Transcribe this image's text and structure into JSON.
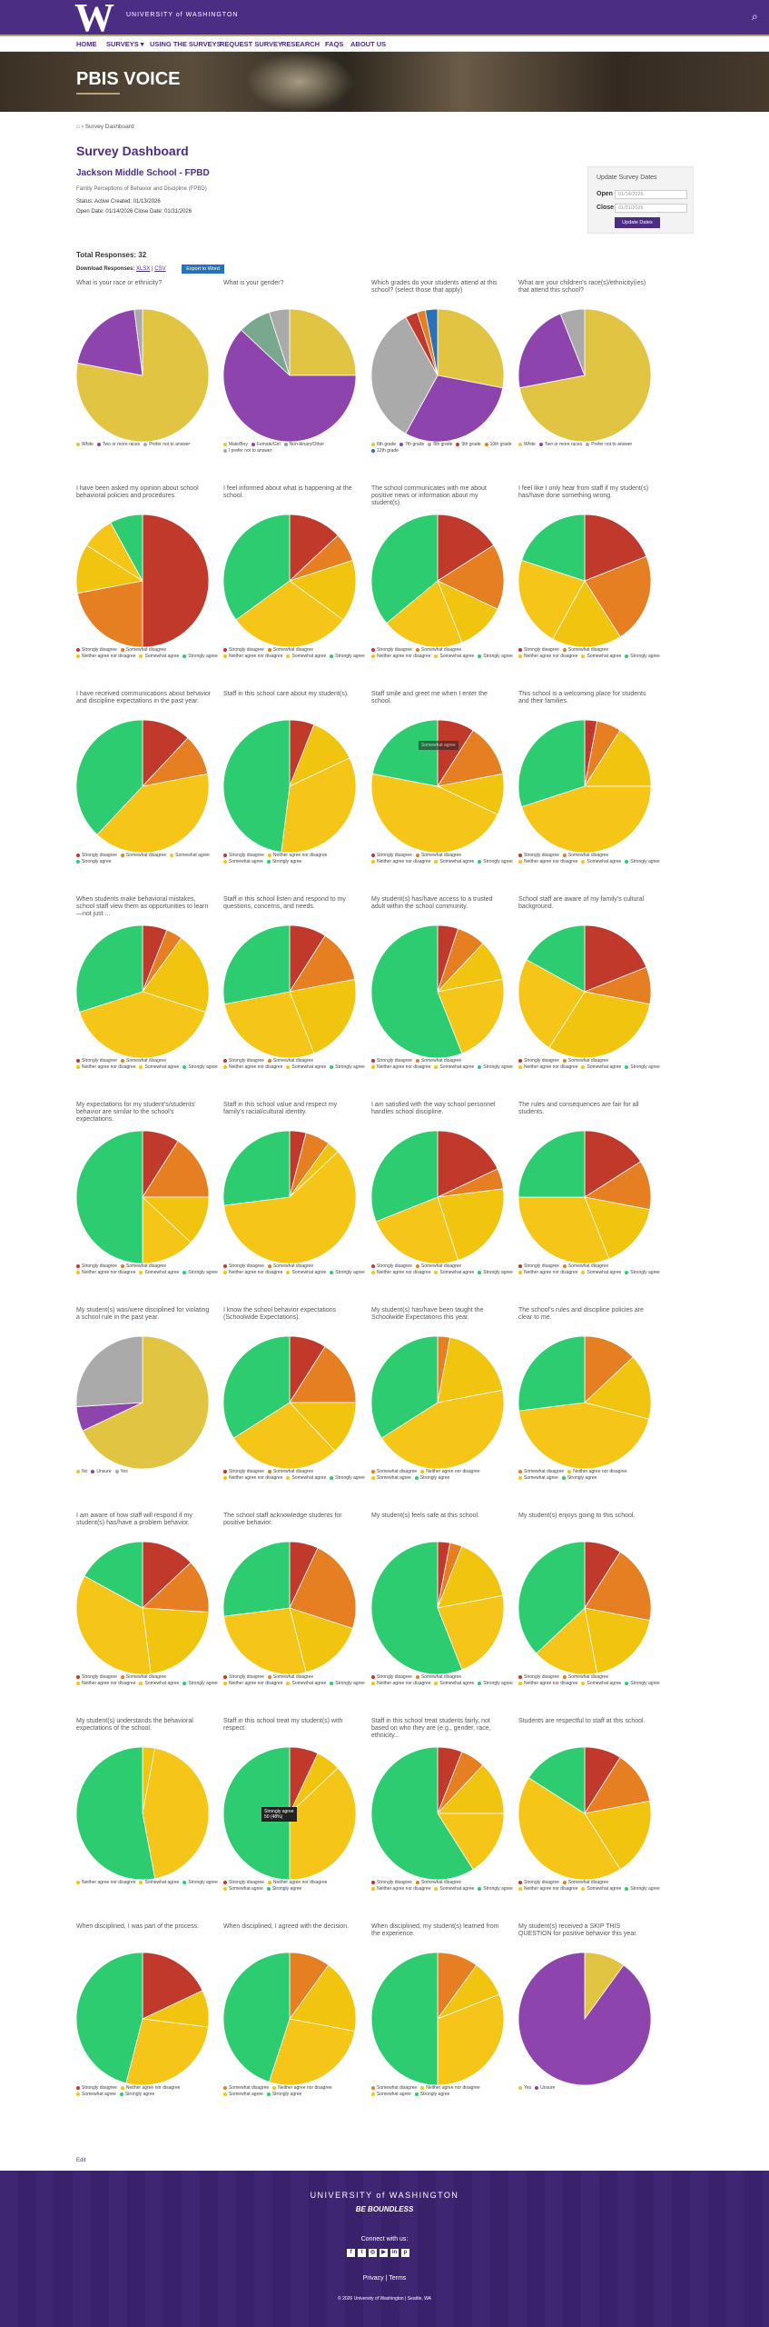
{
  "header": {
    "logo": "W",
    "uw_name": "UNIVERSITY of WASHINGTON",
    "nav": [
      "HOME",
      "SURVEYS ▾",
      "USING THE SURVEYS",
      "REQUEST SURVEY",
      "RESEARCH",
      "FAQS",
      "ABOUT US"
    ]
  },
  "hero": {
    "title": "PBIS VOICE"
  },
  "breadcrumb": "Survey Dashboard",
  "dashboard": {
    "title": "Survey Dashboard",
    "school": "Jackson Middle School - FPBD",
    "subtitle": "Family Perceptions of Behavior and Discipline (FPBD)",
    "meta_line1": "Status: Active   Created: 01/13/2026",
    "meta_line2": "Open Date: 01/14/2026   Close Date: 01/31/2026",
    "total": "Total Responses: 32",
    "download_label": "Download Responses:",
    "download_links": [
      "XLSX",
      "CSV"
    ],
    "export_label": "Export to Word"
  },
  "update": {
    "title": "Update Survey Dates",
    "open_label": "Open",
    "open_value": "01/14/2026",
    "close_label": "Close",
    "close_value": "01/31/2026",
    "button": "Update Dates"
  },
  "colors": {
    "purple": "#4b2e83",
    "gold": "#b7a57a",
    "strongly_disagree": "#c0392b",
    "somewhat_disagree": "#e67e22",
    "neither": "#f1c40f",
    "somewhat_agree": "#f5c518",
    "strongly_agree": "#2ecc71"
  },
  "legend_sets": {
    "agree5": [
      "Strongly disagree",
      "Somewhat disagree",
      "Neither agree nor disagree",
      "Somewhat agree",
      "Strongly agree"
    ],
    "agree5b": [
      "Strongly disagree",
      "Somewhat disagree",
      "Neither agree nor disagree",
      "Somewhat agree",
      "Strongly agree"
    ],
    "agree4": [
      "Somewhat disagree",
      "Neither agree nor disagree",
      "Somewhat agree",
      "Strongly agree"
    ],
    "agree3": [
      "Neither agree nor disagree",
      "Somewhat agree",
      "Strongly agree"
    ]
  },
  "questions": [
    {
      "q": "What is your race or ethnicity?",
      "legend": [
        "White",
        "Two or more races",
        "Prefer not to answer"
      ],
      "colors": [
        "#e1c542",
        "#8e44ad",
        "#aaaaaa"
      ],
      "values": [
        78,
        20,
        2
      ]
    },
    {
      "q": "What is your gender?",
      "legend": [
        "Male/Boy",
        "Female/Girl",
        "Non-binary/Other",
        "I prefer not to answer"
      ],
      "colors": [
        "#e1c542",
        "#8e44ad",
        "#79a88f",
        "#aaaaaa"
      ],
      "values": [
        25,
        62,
        8,
        5
      ]
    },
    {
      "q": "Which grades do your students attend at this school? (select those that apply)",
      "legend": [
        "6th grade",
        "7th grade",
        "8th grade",
        "9th grade",
        "10th grade",
        "12th grade"
      ],
      "colors": [
        "#e1c542",
        "#8e44ad",
        "#aaaaaa",
        "#c0392b",
        "#e67e22",
        "#2a72b5"
      ],
      "values": [
        28,
        30,
        34,
        3,
        2,
        3
      ]
    },
    {
      "q": "What are your children's race(s)/ethnicity(ies) that attend this school?",
      "legend": [
        "White",
        "Two or more races",
        "Prefer not to answer"
      ],
      "colors": [
        "#e1c542",
        "#8e44ad",
        "#aaaaaa"
      ],
      "values": [
        72,
        22,
        6
      ]
    },
    {
      "q": "I have been asked my opinion about school behavioral policies and procedures.",
      "legend": [
        "Strongly disagree",
        "Somewhat disagree",
        "Neither agree nor disagree",
        "Somewhat agree",
        "Strongly agree"
      ],
      "values": [
        50,
        22,
        12,
        8,
        8
      ]
    },
    {
      "q": "I feel informed about what is happening at the school.",
      "legend": [
        "Strongly disagree",
        "Somewhat disagree",
        "Neither agree nor disagree",
        "Somewhat agree",
        "Strongly agree"
      ],
      "values": [
        13,
        7,
        15,
        30,
        35
      ]
    },
    {
      "q": "The school communicates with me about positive news or information about my student(s).",
      "legend": [
        "Strongly disagree",
        "Somewhat disagree",
        "Neither agree nor disagree",
        "Somewhat agree",
        "Strongly agree"
      ],
      "values": [
        16,
        16,
        12,
        20,
        36
      ]
    },
    {
      "q": "I feel like I only hear from staff if my student(s) has/have done something wrong.",
      "legend": [
        "Strongly disagree",
        "Somewhat disagree",
        "Neither agree nor disagree",
        "Somewhat agree",
        "Strongly agree"
      ],
      "values": [
        19,
        22,
        17,
        22,
        20
      ]
    },
    {
      "q": "I have received communications about behavior and discipline expectations in the past year.",
      "legend": [
        "Strongly disagree",
        "Somewhat disagree",
        "Somewhat agree",
        "Strongly agree"
      ],
      "values": [
        12,
        10,
        40,
        38
      ]
    },
    {
      "q": "Staff in this school care about my student(s).",
      "legend": [
        "Strongly disagree",
        "Neither agree nor disagree",
        "Somewhat agree",
        "Strongly agree"
      ],
      "values": [
        6,
        12,
        34,
        48
      ]
    },
    {
      "q": "Staff smile and greet me when I enter the school.",
      "legend": [
        "Strongly disagree",
        "Somewhat disagree",
        "Neither agree nor disagree",
        "Somewhat agree",
        "Strongly agree"
      ],
      "values": [
        9,
        13,
        10,
        46,
        22
      ]
    },
    {
      "q": "This school is a welcoming place for students and their families.",
      "legend": [
        "Strongly disagree",
        "Somewhat disagree",
        "Neither agree nor disagree",
        "Somewhat agree",
        "Strongly agree"
      ],
      "values": [
        3,
        6,
        16,
        45,
        30
      ]
    },
    {
      "q": "When students make behavioral mistakes, school staff view them as opportunities to learn—not just ...",
      "legend": [
        "Strongly disagree",
        "Somewhat disagree",
        "Neither agree nor disagree",
        "Somewhat agree",
        "Strongly agree"
      ],
      "values": [
        6,
        4,
        20,
        40,
        30
      ]
    },
    {
      "q": "Staff in this school listen and respond to my questions, concerns, and needs.",
      "legend": [
        "Strongly disagree",
        "Somewhat disagree",
        "Neither agree nor disagree",
        "Somewhat agree",
        "Strongly agree"
      ],
      "values": [
        9,
        13,
        22,
        28,
        28
      ]
    },
    {
      "q": "My student(s) has/have access to a trusted adult within the school community.",
      "legend": [
        "Strongly disagree",
        "Somewhat disagree",
        "Neither agree nor disagree",
        "Somewhat agree",
        "Strongly agree"
      ],
      "values": [
        5,
        7,
        10,
        22,
        56
      ]
    },
    {
      "q": "School staff are aware of my family's cultural background.",
      "legend": [
        "Strongly disagree",
        "Somewhat disagree",
        "Neither agree nor disagree",
        "Somewhat agree",
        "Strongly agree"
      ],
      "values": [
        19,
        9,
        31,
        24,
        17
      ]
    },
    {
      "q": "My expectations for my student's/students' behavior are similar to the school's expectations.",
      "legend": [
        "Strongly disagree",
        "Somewhat disagree",
        "Neither agree nor disagree",
        "Somewhat agree",
        "Strongly agree"
      ],
      "values": [
        9,
        16,
        12,
        13,
        50
      ]
    },
    {
      "q": "Staff in this school value and respect my family's racial/cultural identity.",
      "legend": [
        "Strongly disagree",
        "Somewhat disagree",
        "Neither agree nor disagree",
        "Somewhat agree",
        "Strongly agree"
      ],
      "values": [
        4,
        6,
        3,
        60,
        27
      ]
    },
    {
      "q": "I am satisfied with the way school personnel handles school discipline.",
      "legend": [
        "Strongly disagree",
        "Somewhat disagree",
        "Neither agree nor disagree",
        "Somewhat agree",
        "Strongly agree"
      ],
      "values": [
        18,
        5,
        22,
        24,
        31
      ]
    },
    {
      "q": "The rules and consequences are fair for all students.",
      "legend": [
        "Strongly disagree",
        "Somewhat disagree",
        "Neither agree nor disagree",
        "Somewhat agree",
        "Strongly agree"
      ],
      "values": [
        16,
        12,
        16,
        31,
        25
      ]
    },
    {
      "q": "My student(s) was/were disciplined for violating a school rule in the past year.",
      "legend": [
        "No",
        "Unsure",
        "Yes"
      ],
      "colors": [
        "#e1c542",
        "#8e44ad",
        "#aaaaaa"
      ],
      "values": [
        68,
        6,
        26
      ]
    },
    {
      "q": "I know the school behavior expectations (Schoolwide Expectations).",
      "legend": [
        "Strongly disagree",
        "Somewhat disagree",
        "Neither agree nor disagree",
        "Somewhat agree",
        "Strongly agree"
      ],
      "values": [
        9,
        16,
        13,
        28,
        34
      ]
    },
    {
      "q": "My student(s) has/have been taught the Schoolwide Expectations this year.",
      "legend": [
        "Somewhat disagree",
        "Neither agree nor disagree",
        "Somewhat agree",
        "Strongly agree"
      ],
      "values": [
        3,
        19,
        44,
        34
      ]
    },
    {
      "q": "The school's rules and discipline policies are clear to me.",
      "legend": [
        "Somewhat disagree",
        "Neither agree nor disagree",
        "Somewhat agree",
        "Strongly agree"
      ],
      "values": [
        13,
        16,
        44,
        27
      ]
    },
    {
      "q": "I am aware of how staff will respond if my student(s) has/have a problem behavior.",
      "legend": [
        "Strongly disagree",
        "Somewhat disagree",
        "Neither agree nor disagree",
        "Somewhat agree",
        "Strongly agree"
      ],
      "values": [
        13,
        13,
        22,
        35,
        17
      ]
    },
    {
      "q": "The school staff acknowledge students for positive behavior.",
      "legend": [
        "Strongly disagree",
        "Somewhat disagree",
        "Neither agree nor disagree",
        "Somewhat agree",
        "Strongly agree"
      ],
      "values": [
        7,
        23,
        16,
        27,
        27
      ]
    },
    {
      "q": "My student(s) feels safe at this school.",
      "legend": [
        "Strongly disagree",
        "Somewhat disagree",
        "Neither agree nor disagree",
        "Somewhat agree",
        "Strongly agree"
      ],
      "values": [
        3,
        3,
        16,
        22,
        56
      ]
    },
    {
      "q": "My student(s) enjoys going to this school.",
      "legend": [
        "Strongly disagree",
        "Somewhat disagree",
        "Neither agree nor disagree",
        "Somewhat agree",
        "Strongly agree"
      ],
      "values": [
        9,
        19,
        19,
        16,
        37
      ]
    },
    {
      "q": "My student(s) understands the behavioral expectations of the school.",
      "legend": [
        "Neither agree nor disagree",
        "Somewhat agree",
        "Strongly agree"
      ],
      "values": [
        3,
        44,
        53
      ]
    },
    {
      "q": "Staff in this school treat my student(s) with respect.",
      "legend": [
        "Strongly disagree",
        "Neither agree nor disagree",
        "Somewhat agree",
        "Strongly agree"
      ],
      "values": [
        7,
        6,
        37,
        50
      ]
    },
    {
      "q": "Staff in this school treat students fairly, not based on who they are (e.g., gender, race, ethnicity...",
      "legend": [
        "Strongly disagree",
        "Somewhat disagree",
        "Neither agree nor disagree",
        "Somewhat agree",
        "Strongly agree"
      ],
      "values": [
        6,
        6,
        13,
        16,
        59
      ]
    },
    {
      "q": "Students are respectful to staff at this school.",
      "legend": [
        "Strongly disagree",
        "Somewhat disagree",
        "Neither agree nor disagree",
        "Somewhat agree",
        "Strongly agree"
      ],
      "values": [
        9,
        13,
        19,
        43,
        16
      ]
    },
    {
      "q": "When disciplined, I was part of the process.",
      "legend": [
        "Strongly disagree",
        "Neither agree nor disagree",
        "Somewhat agree",
        "Strongly agree"
      ],
      "values": [
        18,
        9,
        27,
        46
      ]
    },
    {
      "q": "When disciplined, I agreed with the decision.",
      "legend": [
        "Somewhat disagree",
        "Neither agree nor disagree",
        "Somewhat agree",
        "Strongly agree"
      ],
      "values": [
        10,
        18,
        27,
        45
      ]
    },
    {
      "q": "When disciplined, my student(s) learned from the experience.",
      "legend": [
        "Somewhat disagree",
        "Neither agree nor disagree",
        "Somewhat agree",
        "Strongly agree"
      ],
      "values": [
        10,
        9,
        31,
        50
      ]
    },
    {
      "q": "My student(s) received a SKIP THIS QUESTION for positive behavior this year.",
      "legend": [
        "Yes",
        "Unsure"
      ],
      "colors": [
        "#e1c542",
        "#8e44ad"
      ],
      "values": [
        10,
        90
      ]
    }
  ],
  "tooltips": [
    {
      "text": "Strongly agree\n50 (48%)"
    },
    {
      "text": "Somewhat agree"
    }
  ],
  "edit": "Edit",
  "footer": {
    "uw": "UNIVERSITY of WASHINGTON",
    "tagline": "BE BOUNDLESS",
    "connect": "Connect with us:",
    "links": "Privacy   |   Terms",
    "copyright": "© 2026 University of Washington  |  Seattle, WA"
  }
}
